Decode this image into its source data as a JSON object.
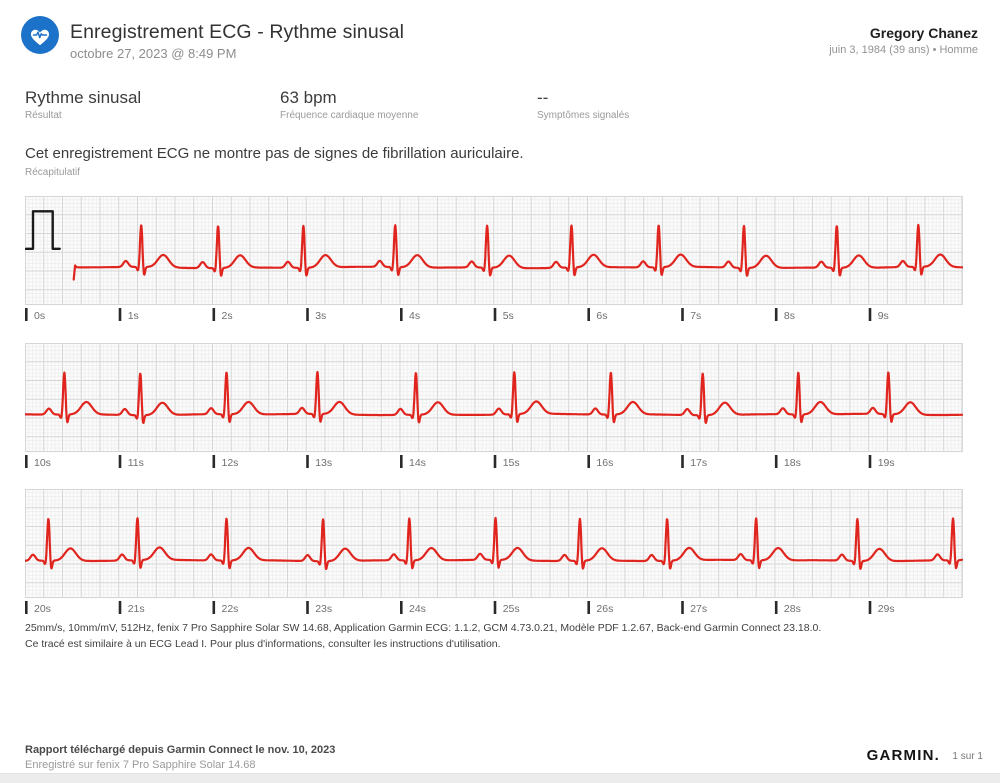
{
  "header": {
    "title": "Enregistrement ECG - Rythme sinusal",
    "datetime": "octobre 27, 2023 @ 8:49 PM",
    "patient_name": "Gregory Chanez",
    "patient_info": "juin 3, 1984 (39 ans) • Homme",
    "icon_color": "#1c72c9"
  },
  "metrics": [
    {
      "value": "Rythme sinusal",
      "label": "Résultat"
    },
    {
      "value": "63 bpm",
      "label": "Fréquence cardiaque moyenne"
    },
    {
      "value": "--",
      "label": "Symptômes signalés"
    }
  ],
  "summary": {
    "text": "Cet enregistrement ECG ne montre pas de signes de fibrillation auriculaire.",
    "label": "Récapitulatif"
  },
  "chart_data": {
    "type": "line",
    "title": "Tracé ECG 30 secondes",
    "x_unit": "s",
    "y_unit": "mV",
    "paper_speed": "25mm/s",
    "gain": "10mm/mV",
    "sample_rate": "512Hz",
    "heart_rate_bpm": 63,
    "duration_s": 30,
    "trace_color": "#e0251f",
    "calibration_color": "#1a1a1a",
    "grid_minor_color": "#ededed",
    "grid_major_color": "#d6d6d6",
    "grid_bg_color": "#fbfbfb",
    "tick_color": "#2a2a2a",
    "tick_label_color": "#6f6f6f",
    "strips": [
      {
        "t_start_s": 0,
        "t_end_s": 10,
        "trace_start_s": 0.52,
        "calibration_pulse": true,
        "tick_labels": [
          "0s",
          "1s",
          "2s",
          "3s",
          "4s",
          "5s",
          "6s",
          "7s",
          "8s",
          "9s"
        ]
      },
      {
        "t_start_s": 10,
        "t_end_s": 20,
        "calibration_pulse": false,
        "tick_labels": [
          "10s",
          "11s",
          "12s",
          "13s",
          "14s",
          "15s",
          "16s",
          "17s",
          "18s",
          "19s"
        ]
      },
      {
        "t_start_s": 20,
        "t_end_s": 30,
        "calibration_pulse": false,
        "tick_labels": [
          "20s",
          "21s",
          "22s",
          "23s",
          "24s",
          "25s",
          "26s",
          "27s",
          "28s",
          "29s"
        ]
      }
    ],
    "beat_times_s": [
      1.24,
      2.06,
      2.97,
      3.95,
      4.93,
      5.83,
      6.76,
      7.67,
      8.66,
      9.53,
      10.42,
      11.23,
      12.15,
      13.12,
      14.17,
      15.22,
      16.25,
      17.23,
      18.25,
      19.21,
      20.25,
      21.2,
      22.15,
      23.18,
      24.1,
      25.02,
      25.92,
      26.85,
      27.8,
      28.88,
      29.9
    ],
    "morphology_mv": [
      {
        "wave": "P",
        "amp": 0.16,
        "center": -0.165,
        "sigma": 0.026
      },
      {
        "wave": "Q",
        "amp": -0.12,
        "center": -0.032,
        "sigma": 0.011
      },
      {
        "wave": "R",
        "amp": 1.13,
        "center": 0,
        "sigma": 0.013
      },
      {
        "wave": "S",
        "amp": -0.28,
        "center": 0.028,
        "sigma": 0.011
      },
      {
        "wave": "T",
        "amp": 0.33,
        "center": 0.235,
        "sigma": 0.058
      }
    ],
    "calibration": {
      "amp_mv": 1.0,
      "width_s": 0.21,
      "baseline_offset_mv": 0.5,
      "foot_s": 0.075
    }
  },
  "tech_footer": {
    "line1": "25mm/s, 10mm/mV, 512Hz, fenix 7 Pro Sapphire Solar SW 14.68, Application Garmin ECG: 1.1.2, GCM 4.73.0.21, Modèle PDF 1.2.67, Back-end Garmin Connect 23.18.0.",
    "line2": "Ce tracé est similaire à un ECG Lead I. Pour plus d'informations, consulter les instructions d'utilisation."
  },
  "page_footer": {
    "downloaded": "Rapport téléchargé depuis Garmin Connect le nov. 10, 2023",
    "recorded": "Enregistré sur fenix 7 Pro Sapphire Solar 14.68",
    "brand": "GARMIN.",
    "page": "1 sur 1"
  }
}
